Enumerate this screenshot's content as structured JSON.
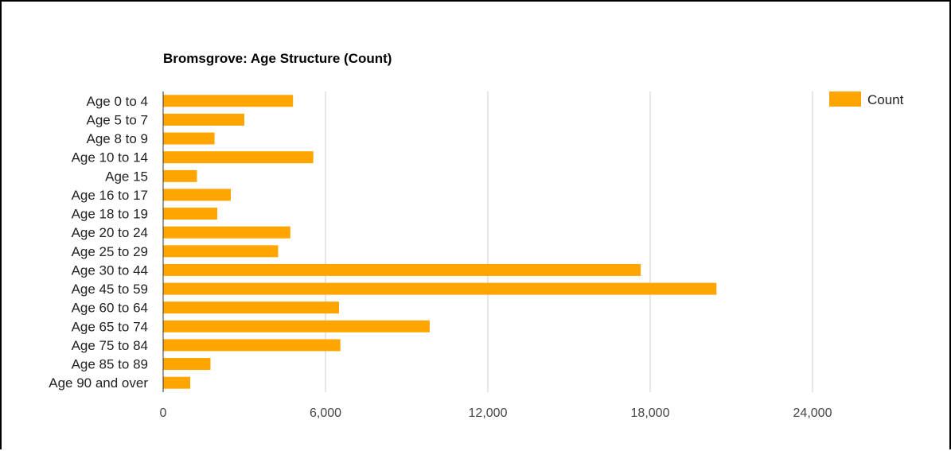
{
  "chart_data": {
    "type": "bar",
    "orientation": "horizontal",
    "title": "Bromsgrove: Age Structure (Count)",
    "xlabel": "",
    "ylabel": "",
    "categories": [
      "Age 0 to 4",
      "Age 5 to 7",
      "Age 8 to 9",
      "Age 10 to 14",
      "Age 15",
      "Age 16 to 17",
      "Age 18 to 19",
      "Age 20 to 24",
      "Age 25 to 29",
      "Age 30 to 44",
      "Age 45 to 59",
      "Age 60 to 64",
      "Age 65 to 74",
      "Age 75 to 84",
      "Age 85 to 89",
      "Age 90 and over"
    ],
    "series": [
      {
        "name": "Count",
        "color": "#FFA500",
        "values": [
          4800,
          3000,
          1900,
          5550,
          1250,
          2500,
          2000,
          4700,
          4250,
          17650,
          20450,
          6500,
          9850,
          6550,
          1750,
          1000
        ]
      }
    ],
    "xlim": [
      0,
      28000
    ],
    "xticks": [
      0,
      6000,
      12000,
      18000,
      24000
    ],
    "xtick_labels": [
      "0",
      "6,000",
      "12,000",
      "18,000",
      "24,000"
    ],
    "grid": true,
    "legend_position": "top-right"
  }
}
